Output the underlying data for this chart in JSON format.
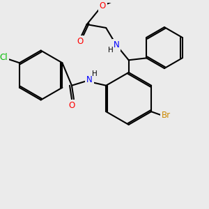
{
  "bg_color": "#ebebeb",
  "bond_color": "#000000",
  "atom_colors": {
    "O": "#ff0000",
    "N": "#0000ff",
    "Cl": "#00bb00",
    "Br": "#cc8800"
  },
  "figsize": [
    3.0,
    3.0
  ],
  "dpi": 100
}
